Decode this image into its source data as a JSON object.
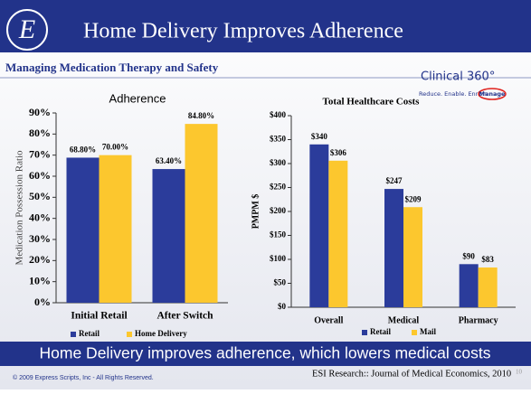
{
  "header": {
    "title": "Home Delivery Improves Adherence"
  },
  "subtitle": "Managing Medication Therapy and Safety",
  "logo": {
    "name": "Clinical 360°",
    "tagline": "Reduce. Enable. Enrich.",
    "highlight": "Manage"
  },
  "banner": "Home Delivery improves adherence, which lowers medical costs",
  "footer": {
    "copyright": "© 2009 Express Scripts, Inc - All Rights Reserved.",
    "source": "ESI Research:: Journal of Medical Economics, 2010",
    "page": "10"
  },
  "chart_data": [
    {
      "type": "bar",
      "title": "Adherence",
      "y_label": "Medication Possession Ratio",
      "categories": [
        "Initial Retail",
        "After Switch"
      ],
      "series": [
        {
          "name": "Retail",
          "color": "#2b3c9b",
          "values": [
            68.8,
            63.4
          ],
          "value_labels": [
            "68.80%",
            "63.40%"
          ]
        },
        {
          "name": "Home Delivery",
          "color": "#fcc72e",
          "values": [
            70,
            84.8
          ],
          "value_labels": [
            "70.00%",
            "84.80%"
          ]
        }
      ],
      "ylim": [
        0,
        90
      ],
      "yticks": [
        {
          "value": 0,
          "label": "0%"
        },
        {
          "value": 10,
          "label": "10%"
        },
        {
          "value": 20,
          "label": "20%"
        },
        {
          "value": 30,
          "label": "30%"
        },
        {
          "value": 40,
          "label": "40%"
        },
        {
          "value": 50,
          "label": "50%"
        },
        {
          "value": 60,
          "label": "60%"
        },
        {
          "value": 70,
          "label": "70%"
        },
        {
          "value": 80,
          "label": "80%"
        },
        {
          "value": 90,
          "label": "90%"
        }
      ],
      "grid": false,
      "legend": "bottom"
    },
    {
      "type": "bar",
      "title": "Total Healthcare Costs",
      "y_label": "PMPM $",
      "categories": [
        "Overall",
        "Medical",
        "Pharmacy"
      ],
      "series": [
        {
          "name": "Retail",
          "color": "#2b3c9b",
          "values": [
            340,
            247,
            90
          ],
          "value_labels": [
            "$340",
            "$247",
            "$90"
          ]
        },
        {
          "name": "Mail",
          "color": "#fcc72e",
          "values": [
            306,
            209,
            83
          ],
          "value_labels": [
            "$306",
            "$209",
            "$83"
          ]
        }
      ],
      "ylim": [
        0,
        400
      ],
      "yticks": [
        {
          "value": 0,
          "label": "$0"
        },
        {
          "value": 50,
          "label": "$50"
        },
        {
          "value": 100,
          "label": "$100"
        },
        {
          "value": 150,
          "label": "$150"
        },
        {
          "value": 200,
          "label": "$200"
        },
        {
          "value": 250,
          "label": "$250"
        },
        {
          "value": 300,
          "label": "$300"
        },
        {
          "value": 350,
          "label": "$350"
        },
        {
          "value": 400,
          "label": "$400"
        }
      ],
      "grid": false,
      "legend": "bottom"
    }
  ]
}
